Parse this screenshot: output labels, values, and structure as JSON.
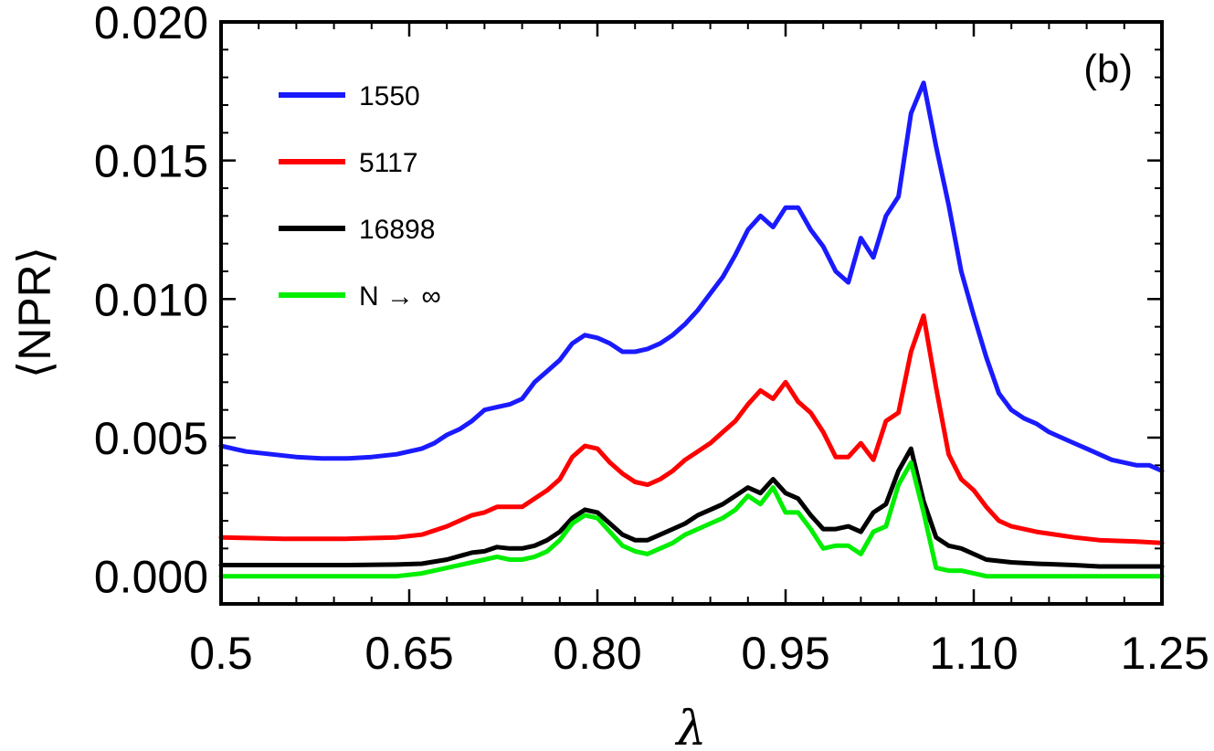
{
  "chart_data": {
    "type": "line",
    "panel_label": "(b)",
    "xlabel": "λ",
    "ylabel": "⟨NPR⟩",
    "xlim": [
      0.5,
      1.25
    ],
    "ylim": [
      -0.001,
      0.02
    ],
    "x_ticks": [
      0.5,
      0.65,
      0.8,
      0.95,
      1.1,
      1.25
    ],
    "x_tick_labels": [
      "0.5",
      "0.65",
      "0.80",
      "0.95",
      "1.10",
      "1.25"
    ],
    "y_ticks": [
      0.0,
      0.005,
      0.01,
      0.015,
      0.02
    ],
    "y_tick_labels": [
      "0.000",
      "0.005",
      "0.010",
      "0.015",
      "0.020"
    ],
    "legend_position": "top-left",
    "grid": false,
    "series": [
      {
        "name": "1550",
        "color": "#1a1aff",
        "points": [
          [
            0.5,
            0.0047
          ],
          [
            0.52,
            0.0045
          ],
          [
            0.54,
            0.0044
          ],
          [
            0.56,
            0.0043
          ],
          [
            0.58,
            0.00425
          ],
          [
            0.6,
            0.00425
          ],
          [
            0.62,
            0.0043
          ],
          [
            0.64,
            0.0044
          ],
          [
            0.66,
            0.0046
          ],
          [
            0.67,
            0.0048
          ],
          [
            0.68,
            0.0051
          ],
          [
            0.69,
            0.0053
          ],
          [
            0.7,
            0.0056
          ],
          [
            0.71,
            0.006
          ],
          [
            0.72,
            0.0061
          ],
          [
            0.73,
            0.0062
          ],
          [
            0.74,
            0.0064
          ],
          [
            0.75,
            0.007
          ],
          [
            0.76,
            0.0074
          ],
          [
            0.77,
            0.0078
          ],
          [
            0.78,
            0.0084
          ],
          [
            0.79,
            0.0087
          ],
          [
            0.8,
            0.0086
          ],
          [
            0.81,
            0.0084
          ],
          [
            0.82,
            0.0081
          ],
          [
            0.83,
            0.0081
          ],
          [
            0.84,
            0.0082
          ],
          [
            0.85,
            0.0084
          ],
          [
            0.86,
            0.0087
          ],
          [
            0.87,
            0.0091
          ],
          [
            0.88,
            0.0096
          ],
          [
            0.89,
            0.0102
          ],
          [
            0.9,
            0.0108
          ],
          [
            0.91,
            0.0116
          ],
          [
            0.92,
            0.0125
          ],
          [
            0.93,
            0.013
          ],
          [
            0.94,
            0.0126
          ],
          [
            0.95,
            0.0133
          ],
          [
            0.96,
            0.0133
          ],
          [
            0.97,
            0.0125
          ],
          [
            0.98,
            0.0119
          ],
          [
            0.99,
            0.011
          ],
          [
            1.0,
            0.0106
          ],
          [
            1.01,
            0.0122
          ],
          [
            1.02,
            0.0115
          ],
          [
            1.03,
            0.013
          ],
          [
            1.04,
            0.0137
          ],
          [
            1.05,
            0.0167
          ],
          [
            1.06,
            0.0178
          ],
          [
            1.07,
            0.0155
          ],
          [
            1.08,
            0.0134
          ],
          [
            1.09,
            0.011
          ],
          [
            1.1,
            0.0094
          ],
          [
            1.11,
            0.0079
          ],
          [
            1.12,
            0.0066
          ],
          [
            1.13,
            0.006
          ],
          [
            1.14,
            0.0057
          ],
          [
            1.15,
            0.0055
          ],
          [
            1.16,
            0.0052
          ],
          [
            1.17,
            0.005
          ],
          [
            1.18,
            0.0048
          ],
          [
            1.19,
            0.0046
          ],
          [
            1.2,
            0.0044
          ],
          [
            1.21,
            0.0042
          ],
          [
            1.22,
            0.0041
          ],
          [
            1.23,
            0.004
          ],
          [
            1.24,
            0.004
          ],
          [
            1.25,
            0.0038
          ]
        ]
      },
      {
        "name": "5117",
        "color": "#ff0000",
        "points": [
          [
            0.5,
            0.0014
          ],
          [
            0.55,
            0.00135
          ],
          [
            0.6,
            0.00135
          ],
          [
            0.64,
            0.0014
          ],
          [
            0.66,
            0.0015
          ],
          [
            0.68,
            0.0018
          ],
          [
            0.7,
            0.0022
          ],
          [
            0.71,
            0.0023
          ],
          [
            0.72,
            0.0025
          ],
          [
            0.73,
            0.0025
          ],
          [
            0.74,
            0.0025
          ],
          [
            0.75,
            0.0028
          ],
          [
            0.76,
            0.0031
          ],
          [
            0.77,
            0.0035
          ],
          [
            0.78,
            0.0043
          ],
          [
            0.79,
            0.0047
          ],
          [
            0.8,
            0.0046
          ],
          [
            0.81,
            0.0041
          ],
          [
            0.82,
            0.0037
          ],
          [
            0.83,
            0.0034
          ],
          [
            0.84,
            0.0033
          ],
          [
            0.85,
            0.0035
          ],
          [
            0.86,
            0.0038
          ],
          [
            0.87,
            0.0042
          ],
          [
            0.88,
            0.0045
          ],
          [
            0.89,
            0.0048
          ],
          [
            0.9,
            0.0052
          ],
          [
            0.91,
            0.0056
          ],
          [
            0.92,
            0.0062
          ],
          [
            0.93,
            0.0067
          ],
          [
            0.94,
            0.0064
          ],
          [
            0.95,
            0.007
          ],
          [
            0.96,
            0.0063
          ],
          [
            0.97,
            0.0059
          ],
          [
            0.98,
            0.0052
          ],
          [
            0.99,
            0.0043
          ],
          [
            1.0,
            0.0043
          ],
          [
            1.01,
            0.0048
          ],
          [
            1.02,
            0.0042
          ],
          [
            1.03,
            0.0056
          ],
          [
            1.04,
            0.0059
          ],
          [
            1.05,
            0.0081
          ],
          [
            1.06,
            0.0094
          ],
          [
            1.07,
            0.0068
          ],
          [
            1.08,
            0.0044
          ],
          [
            1.09,
            0.0035
          ],
          [
            1.1,
            0.0031
          ],
          [
            1.11,
            0.0025
          ],
          [
            1.12,
            0.002
          ],
          [
            1.13,
            0.0018
          ],
          [
            1.15,
            0.0016
          ],
          [
            1.18,
            0.0014
          ],
          [
            1.2,
            0.0013
          ],
          [
            1.23,
            0.00125
          ],
          [
            1.25,
            0.0012
          ]
        ]
      },
      {
        "name": "16898",
        "color": "#000000",
        "points": [
          [
            0.5,
            0.0004
          ],
          [
            0.55,
            0.0004
          ],
          [
            0.6,
            0.0004
          ],
          [
            0.64,
            0.00042
          ],
          [
            0.66,
            0.00045
          ],
          [
            0.68,
            0.0006
          ],
          [
            0.7,
            0.00085
          ],
          [
            0.71,
            0.0009
          ],
          [
            0.72,
            0.00105
          ],
          [
            0.73,
            0.001
          ],
          [
            0.74,
            0.001
          ],
          [
            0.75,
            0.0011
          ],
          [
            0.76,
            0.0013
          ],
          [
            0.77,
            0.0016
          ],
          [
            0.78,
            0.0021
          ],
          [
            0.79,
            0.0024
          ],
          [
            0.8,
            0.0023
          ],
          [
            0.81,
            0.0019
          ],
          [
            0.82,
            0.0015
          ],
          [
            0.83,
            0.0013
          ],
          [
            0.84,
            0.0013
          ],
          [
            0.85,
            0.0015
          ],
          [
            0.86,
            0.0017
          ],
          [
            0.87,
            0.0019
          ],
          [
            0.88,
            0.0022
          ],
          [
            0.89,
            0.0024
          ],
          [
            0.9,
            0.0026
          ],
          [
            0.91,
            0.0029
          ],
          [
            0.92,
            0.0032
          ],
          [
            0.93,
            0.003
          ],
          [
            0.94,
            0.0035
          ],
          [
            0.95,
            0.003
          ],
          [
            0.96,
            0.0028
          ],
          [
            0.97,
            0.0022
          ],
          [
            0.98,
            0.0017
          ],
          [
            0.99,
            0.0017
          ],
          [
            1.0,
            0.0018
          ],
          [
            1.01,
            0.0016
          ],
          [
            1.02,
            0.0023
          ],
          [
            1.03,
            0.0026
          ],
          [
            1.04,
            0.0038
          ],
          [
            1.05,
            0.0046
          ],
          [
            1.06,
            0.0027
          ],
          [
            1.07,
            0.0014
          ],
          [
            1.08,
            0.0011
          ],
          [
            1.09,
            0.001
          ],
          [
            1.1,
            0.0008
          ],
          [
            1.11,
            0.0006
          ],
          [
            1.13,
            0.0005
          ],
          [
            1.15,
            0.00045
          ],
          [
            1.18,
            0.0004
          ],
          [
            1.2,
            0.00035
          ],
          [
            1.25,
            0.00035
          ]
        ]
      },
      {
        "name": "N → ∞",
        "color": "#00ee00",
        "points": [
          [
            0.5,
            0.0
          ],
          [
            0.55,
            0.0
          ],
          [
            0.6,
            0.0
          ],
          [
            0.64,
            0.0
          ],
          [
            0.66,
            0.0001
          ],
          [
            0.68,
            0.0003
          ],
          [
            0.7,
            0.0005
          ],
          [
            0.71,
            0.0006
          ],
          [
            0.72,
            0.0007
          ],
          [
            0.73,
            0.0006
          ],
          [
            0.74,
            0.0006
          ],
          [
            0.75,
            0.0007
          ],
          [
            0.76,
            0.0009
          ],
          [
            0.77,
            0.0013
          ],
          [
            0.78,
            0.0019
          ],
          [
            0.79,
            0.0022
          ],
          [
            0.8,
            0.0021
          ],
          [
            0.81,
            0.0016
          ],
          [
            0.82,
            0.0011
          ],
          [
            0.83,
            0.0009
          ],
          [
            0.84,
            0.0008
          ],
          [
            0.85,
            0.001
          ],
          [
            0.86,
            0.0012
          ],
          [
            0.87,
            0.0015
          ],
          [
            0.88,
            0.0017
          ],
          [
            0.89,
            0.0019
          ],
          [
            0.9,
            0.0021
          ],
          [
            0.91,
            0.0024
          ],
          [
            0.92,
            0.0029
          ],
          [
            0.93,
            0.0026
          ],
          [
            0.94,
            0.0032
          ],
          [
            0.95,
            0.0023
          ],
          [
            0.96,
            0.0023
          ],
          [
            0.97,
            0.0017
          ],
          [
            0.98,
            0.001
          ],
          [
            0.99,
            0.0011
          ],
          [
            1.0,
            0.0011
          ],
          [
            1.01,
            0.0008
          ],
          [
            1.02,
            0.0016
          ],
          [
            1.03,
            0.0018
          ],
          [
            1.04,
            0.0033
          ],
          [
            1.05,
            0.0041
          ],
          [
            1.06,
            0.0023
          ],
          [
            1.07,
            0.0003
          ],
          [
            1.08,
            0.0002
          ],
          [
            1.09,
            0.0002
          ],
          [
            1.1,
            0.0001
          ],
          [
            1.11,
            0.0
          ],
          [
            1.15,
            0.0
          ],
          [
            1.2,
            0.0
          ],
          [
            1.25,
            0.0
          ]
        ]
      }
    ]
  }
}
